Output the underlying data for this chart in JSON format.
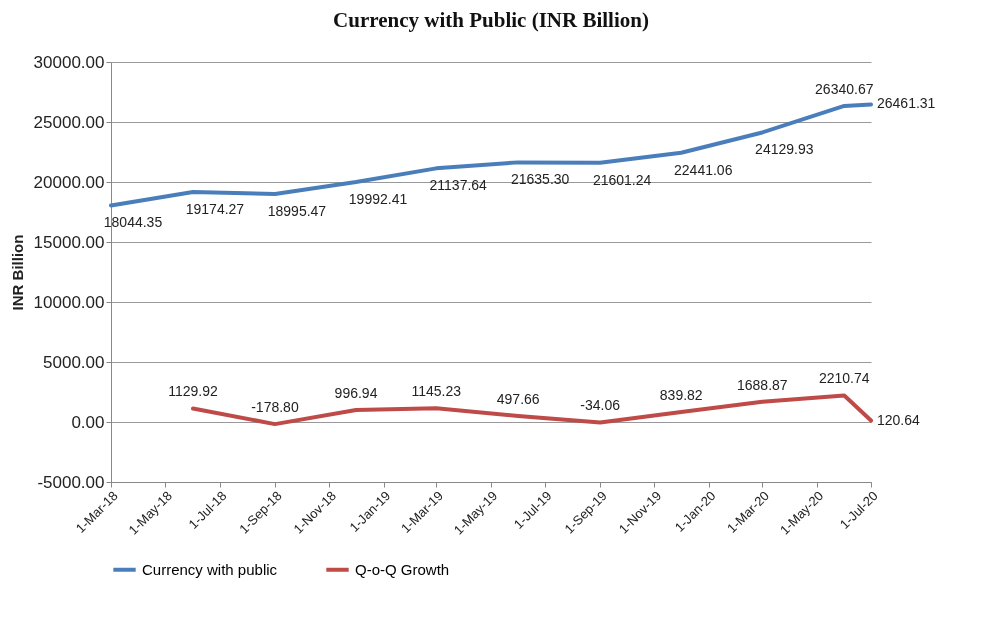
{
  "chart_data": {
    "type": "line",
    "title": "Currency with Public (INR Billion)",
    "ylabel": "INR Billion",
    "x": [
      "2018-03-01",
      "2018-06-01",
      "2018-09-01",
      "2018-12-01",
      "2019-03-01",
      "2019-06-01",
      "2019-09-01",
      "2019-12-01",
      "2020-03-01",
      "2020-06-01",
      "2020-07-01"
    ],
    "series": [
      {
        "name": "Currency with public",
        "color": "#4a7ebb",
        "values": [
          18044.35,
          19174.27,
          18995.47,
          19992.41,
          21137.64,
          21635.3,
          21601.24,
          22441.06,
          24129.93,
          26340.67,
          26461.31
        ],
        "value_labels": [
          "18044.35",
          "19174.27",
          "18995.47",
          "19992.41",
          "21137.64",
          "21635.30",
          "21601.24",
          "22441.06",
          "24129.93",
          "26340.67",
          "26461.31"
        ]
      },
      {
        "name": "Q-o-Q Growth",
        "color": "#be4b48",
        "values": [
          null,
          1129.92,
          -178.8,
          996.94,
          1145.23,
          497.66,
          -34.06,
          839.82,
          1688.87,
          2210.74,
          120.64
        ],
        "value_labels": [
          null,
          "1129.92",
          "-178.80",
          "996.94",
          "1145.23",
          "497.66",
          "-34.06",
          "839.82",
          "1688.87",
          "2210.74",
          "120.64"
        ]
      }
    ],
    "xlim": [
      "2018-03-01",
      "2020-07-01"
    ],
    "xticks": [
      {
        "value": "2018-03-01",
        "label": "1-Mar-18"
      },
      {
        "value": "2018-05-01",
        "label": "1-May-18"
      },
      {
        "value": "2018-07-01",
        "label": "1-Jul-18"
      },
      {
        "value": "2018-09-01",
        "label": "1-Sep-18"
      },
      {
        "value": "2018-11-01",
        "label": "1-Nov-18"
      },
      {
        "value": "2019-01-01",
        "label": "1-Jan-19"
      },
      {
        "value": "2019-03-01",
        "label": "1-Mar-19"
      },
      {
        "value": "2019-05-01",
        "label": "1-May-19"
      },
      {
        "value": "2019-07-01",
        "label": "1-Jul-19"
      },
      {
        "value": "2019-09-01",
        "label": "1-Sep-19"
      },
      {
        "value": "2019-11-01",
        "label": "1-Nov-19"
      },
      {
        "value": "2020-01-01",
        "label": "1-Jan-20"
      },
      {
        "value": "2020-03-01",
        "label": "1-Mar-20"
      },
      {
        "value": "2020-05-01",
        "label": "1-May-20"
      },
      {
        "value": "2020-07-01",
        "label": "1-Jul-20"
      }
    ],
    "ylim": [
      -5000,
      30000
    ],
    "yticks": [
      {
        "value": -5000,
        "label": "-5000.00"
      },
      {
        "value": 0,
        "label": "0.00"
      },
      {
        "value": 5000,
        "label": "5000.00"
      },
      {
        "value": 10000,
        "label": "10000.00"
      },
      {
        "value": 15000,
        "label": "15000.00"
      },
      {
        "value": 20000,
        "label": "20000.00"
      },
      {
        "value": 25000,
        "label": "25000.00"
      },
      {
        "value": 30000,
        "label": "30000.00"
      }
    ],
    "grid": "y",
    "legend": "bottom",
    "marker": "none",
    "line_style": "solid"
  }
}
